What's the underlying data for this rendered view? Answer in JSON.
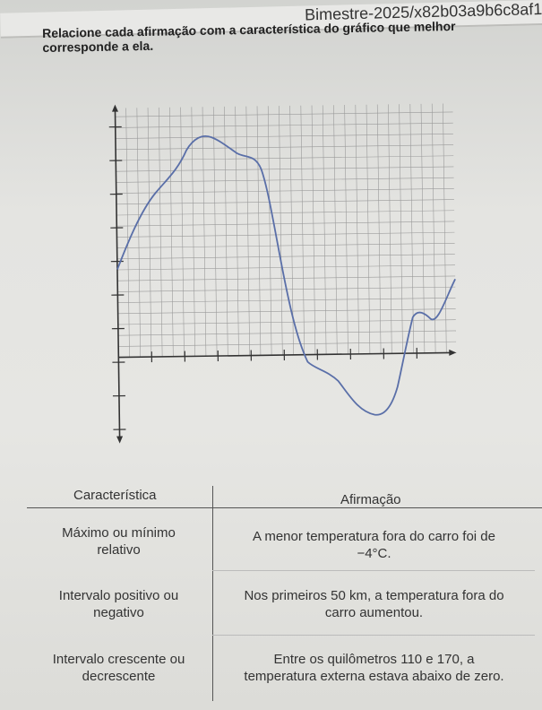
{
  "header": {
    "url_fragment": "Bimestre-2025/x82b03a9b6c8af1"
  },
  "instruction": "Relacione cada afirmação com a característica do gráfico que melhor corresponde a ela.",
  "graph": {
    "line_color": "#5a6fa8",
    "grid_color": "#9a9a9a"
  },
  "table": {
    "headers": {
      "left": "Característica",
      "right": "Afirmação"
    },
    "rows": [
      {
        "characteristic": [
          "Máximo ou mínimo",
          "relativo"
        ],
        "statement": [
          "A menor temperatura fora do carro foi de",
          "−4°C."
        ]
      },
      {
        "characteristic": [
          "Intervalo positivo ou",
          "negativo"
        ],
        "statement": [
          "Nos primeiros 50 km, a temperatura fora do",
          "carro aumentou."
        ]
      },
      {
        "characteristic": [
          "Intervalo crescente ou",
          "decrescente"
        ],
        "statement": [
          "Entre os quilômetros 110 e 170, a",
          "temperatura externa estava abaixo de zero."
        ]
      }
    ]
  }
}
